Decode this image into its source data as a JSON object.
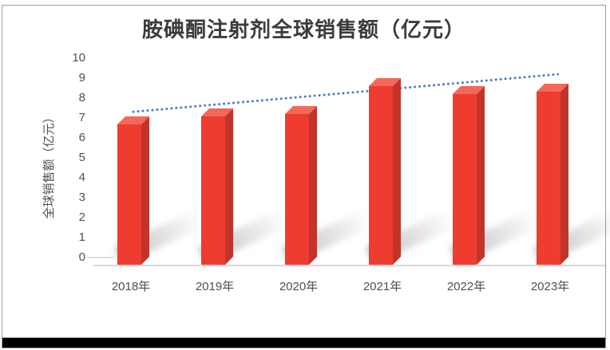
{
  "chart_data": {
    "type": "bar",
    "title": "胺碘酮注射剂全球销售额（亿元）",
    "ylabel": "全球销售额（亿元）",
    "xlabel": "",
    "categories": [
      "2018年",
      "2019年",
      "2020年",
      "2021年",
      "2022年",
      "2023年"
    ],
    "values": [
      7.0,
      7.4,
      7.5,
      8.9,
      8.5,
      8.6
    ],
    "ylim": [
      0,
      10
    ],
    "ytick_step": 1,
    "grid": false,
    "legend_position": "none",
    "bar_style": "3d-box-with-shadow",
    "trendline": {
      "style": "dotted",
      "start_value": 7.3,
      "end_value": 9.2
    }
  },
  "colors": {
    "bar_front": "#EE3C30",
    "bar_side": "#C23429",
    "bar_top": "#F2695C",
    "trend": "#4472C4",
    "axis_text": "#4f4f4f",
    "title_text": "#3b3b3b",
    "floor_line": "#d9d9d9",
    "frame_border": "#9b9b9b",
    "footer": "#000000"
  }
}
